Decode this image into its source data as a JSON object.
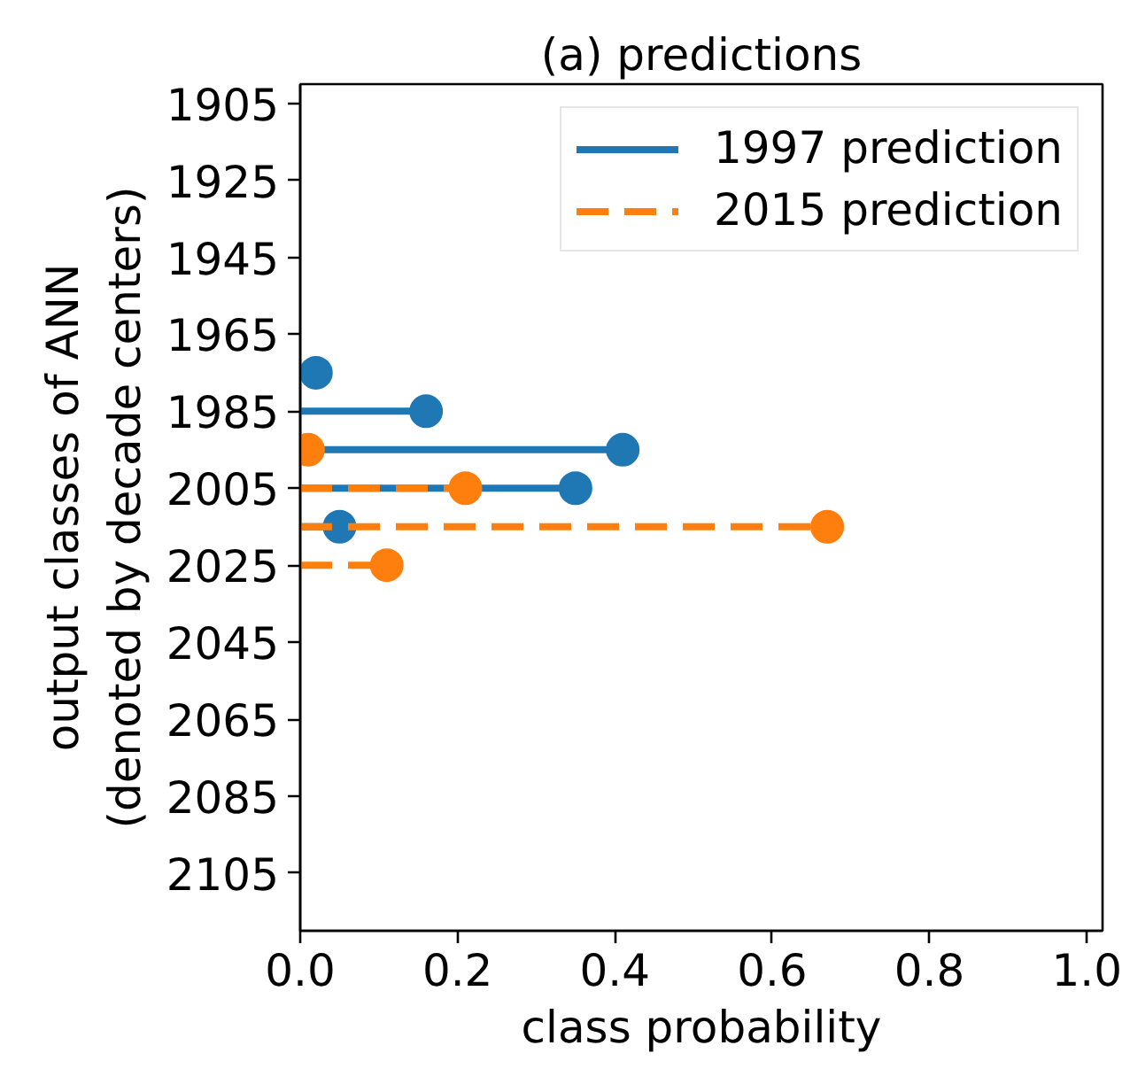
{
  "chart_data": {
    "type": "lollipop",
    "orientation": "horizontal",
    "title": "(a) predictions",
    "xlabel": "class probability",
    "ylabel": "output classes of ANN\n(denoted by decade centers)",
    "xlim": [
      0,
      1.02
    ],
    "xticks": [
      {
        "value": 0,
        "label": "0.0"
      },
      0.2,
      0.4,
      0.6,
      0.8,
      {
        "value": 1,
        "label": "1.0"
      }
    ],
    "ylim": [
      2120,
      1900
    ],
    "yticks": [
      1905,
      1925,
      1945,
      1965,
      1985,
      2005,
      2025,
      2045,
      2065,
      2085,
      2105
    ],
    "series": [
      {
        "name": "1997 prediction",
        "color": "#1f77b4",
        "line_style": "solid",
        "x": [
          1975,
          1985,
          1995,
          2005,
          2015
        ],
        "values": [
          0.02,
          0.16,
          0.41,
          0.35,
          0.05
        ]
      },
      {
        "name": "2015 prediction",
        "color": "#ff7f0e",
        "line_style": "dashed",
        "x": [
          1995,
          2005,
          2015,
          2025
        ],
        "values": [
          0.01,
          0.21,
          0.67,
          0.11
        ]
      }
    ],
    "marker": "circle",
    "legend": "top right",
    "grid": false
  }
}
